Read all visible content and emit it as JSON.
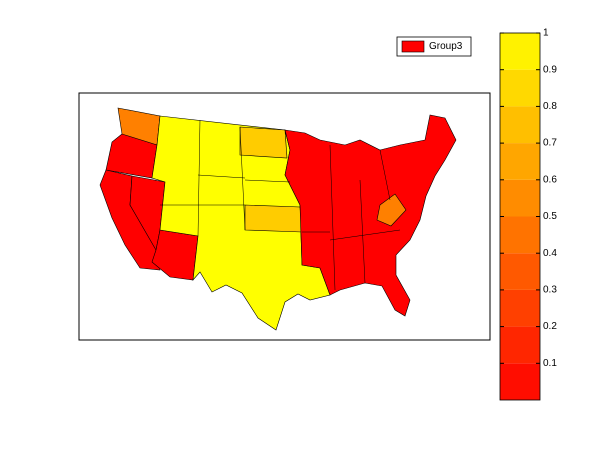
{
  "legend": {
    "label": "Group3",
    "color": "#ff0000"
  },
  "colorbar": {
    "lim": [
      0,
      1
    ],
    "ticks": [
      0.1,
      0.2,
      0.3,
      0.4,
      0.5,
      0.6,
      0.7,
      0.8,
      0.9,
      1
    ],
    "levels": 10
  },
  "regions": [
    {
      "value": 0.5
    },
    {
      "value": 0
    },
    {
      "value": 0
    },
    {
      "value": 0
    },
    {
      "value": 0
    },
    {
      "value": 1
    },
    {
      "value": 0.8
    },
    {
      "value": 0.8
    },
    {
      "value": 0
    },
    {
      "value": 0.5
    }
  ]
}
